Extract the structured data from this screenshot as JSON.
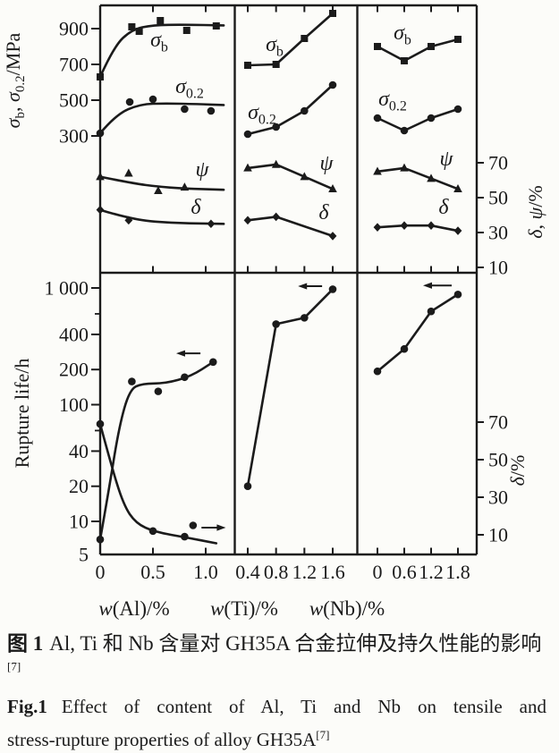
{
  "figure": {
    "caption_zh": {
      "prefix": "图 1",
      "body": "Al, Ti 和 Nb 含量对 GH35A 合金拉伸及持久性能的影响",
      "sup": "[7]"
    },
    "caption_en": {
      "prefix": "Fig.1",
      "line1": "Effect of content of Al, Ti and Nb on tensile and",
      "line2": "stress-rupture properties of alloy GH35A",
      "sup": "[7]"
    }
  },
  "chart_data": {
    "type": "line",
    "description": "Six-panel scanned figure: top row tensile properties (sigma-b, sigma-0.2 in MPa; psi, delta in %) and bottom row stress-rupture life (log scale, h) and rupture elongation delta (%) versus Al, Ti and Nb content of alloy GH35A",
    "panels": [
      {
        "id": "al",
        "xlabel": [
          {
            "t": "w",
            "it": true
          },
          {
            "t": "(Al)/%"
          }
        ],
        "xticks": [
          {
            "v": 0,
            "t": "0"
          },
          {
            "v": 0.5,
            "t": "0.5"
          },
          {
            "v": 1.0,
            "t": "1.0"
          }
        ],
        "tick_marks": [
          0.5,
          1.0
        ],
        "xlim": [
          0,
          1.27
        ]
      },
      {
        "id": "ti",
        "xlabel": [
          {
            "t": "w",
            "it": true
          },
          {
            "t": "(Ti)/%"
          }
        ],
        "xticks": [
          {
            "v": 0.4,
            "t": "0.4"
          },
          {
            "v": 0.8,
            "t": "0.8"
          },
          {
            "v": 1.2,
            "t": "1.2"
          },
          {
            "v": 1.6,
            "t": "1.6"
          }
        ],
        "tick_marks": [
          0.4,
          0.8,
          1.2,
          1.6
        ],
        "xlim": [
          0.21,
          1.95
        ]
      },
      {
        "id": "nb",
        "xlabel": [
          {
            "t": "w",
            "it": true
          },
          {
            "t": "(Nb)/%"
          }
        ],
        "xticks": [
          {
            "v": 0,
            "t": "0"
          },
          {
            "v": 0.6,
            "t": "0.6"
          },
          {
            "v": 1.2,
            "t": "1.2"
          },
          {
            "v": 1.8,
            "t": "1.8"
          }
        ],
        "tick_marks": [
          0,
          0.6,
          1.2,
          1.8
        ],
        "xlim": [
          -0.44,
          2.22
        ]
      }
    ],
    "axes": {
      "mpa": {
        "side": "left",
        "row": "top",
        "scale": "linear",
        "ylim": [
          230,
          1030
        ],
        "label": [
          {
            "t": "σ",
            "it": true
          },
          {
            "t": "b",
            "sub": true
          },
          {
            "t": ", "
          },
          {
            "t": "σ",
            "it": true
          },
          {
            "t": "0.2",
            "sub": true
          },
          {
            "t": "/MPa"
          }
        ],
        "ticks": [
          {
            "v": 300,
            "t": "300"
          },
          {
            "v": 500,
            "t": "500"
          },
          {
            "v": 700,
            "t": "700"
          },
          {
            "v": 900,
            "t": "900"
          }
        ]
      },
      "pct_top": {
        "side": "right",
        "row": "top",
        "scale": "linear",
        "ylim": [
          7,
          80
        ],
        "label": [
          {
            "t": "δ",
            "it": true
          },
          {
            "t": ", "
          },
          {
            "t": "ψ",
            "it": true
          },
          {
            "t": "/%"
          }
        ],
        "ticks": [
          {
            "v": 10,
            "t": "10"
          },
          {
            "v": 30,
            "t": "30"
          },
          {
            "v": 50,
            "t": "50"
          },
          {
            "v": 70,
            "t": "70"
          }
        ]
      },
      "life": {
        "side": "left",
        "row": "bottom",
        "scale": "log",
        "ylim": [
          5,
          1350
        ],
        "label": [
          {
            "t": "Rupture life/h"
          }
        ],
        "ticks": [
          {
            "v": 5,
            "t": "5",
            "no_mark": true
          },
          {
            "v": 10,
            "t": "10"
          },
          {
            "v": 20,
            "t": "20"
          },
          {
            "v": 40,
            "t": "40"
          },
          {
            "v": 100,
            "t": "100"
          },
          {
            "v": 200,
            "t": "200"
          },
          {
            "v": 400,
            "t": "400"
          },
          {
            "v": 1000,
            "t": "1 000"
          }
        ],
        "minor": [
          60,
          600
        ]
      },
      "pct_bot": {
        "side": "right",
        "row": "bottom",
        "scale": "linear",
        "ylim": [
          3,
          73
        ],
        "label": [
          {
            "t": "δ",
            "it": true
          },
          {
            "t": "/%"
          }
        ],
        "ticks": [
          {
            "v": 10,
            "t": "10"
          },
          {
            "v": 30,
            "t": "30"
          },
          {
            "v": 50,
            "t": "50"
          },
          {
            "v": 70,
            "t": "70"
          }
        ]
      }
    },
    "series": [
      {
        "id": "al-sigma-b",
        "row": "top",
        "panel": "al",
        "axis": "mpa",
        "marker": "square",
        "smooth": true,
        "label": [
          {
            "t": "σ",
            "it": true
          },
          {
            "t": "b",
            "sub": true
          }
        ],
        "points": [
          [
            0,
            630
          ],
          [
            0.3,
            910
          ],
          [
            0.37,
            885
          ],
          [
            0.57,
            945
          ],
          [
            0.82,
            890
          ],
          [
            1.1,
            915
          ]
        ],
        "path": [
          [
            0,
            630
          ],
          [
            0.13,
            800
          ],
          [
            0.3,
            895
          ],
          [
            0.5,
            920
          ],
          [
            0.8,
            922
          ],
          [
            1.17,
            918
          ]
        ]
      },
      {
        "id": "al-sigma-02",
        "row": "top",
        "panel": "al",
        "axis": "mpa",
        "marker": "circle",
        "smooth": true,
        "label": [
          {
            "t": "σ",
            "it": true
          },
          {
            "t": "0.2",
            "sub": true
          }
        ],
        "points": [
          [
            0,
            315
          ],
          [
            0.28,
            490
          ],
          [
            0.5,
            505
          ],
          [
            0.8,
            450
          ],
          [
            1.05,
            440
          ]
        ],
        "path": [
          [
            0,
            315
          ],
          [
            0.15,
            420
          ],
          [
            0.38,
            478
          ],
          [
            0.62,
            482
          ],
          [
            0.92,
            478
          ],
          [
            1.17,
            473
          ]
        ]
      },
      {
        "id": "al-psi",
        "row": "top",
        "panel": "al",
        "axis": "pct_top",
        "marker": "triangle",
        "smooth": true,
        "label": [
          {
            "t": "ψ",
            "it": true
          }
        ],
        "points": [
          [
            0,
            62
          ],
          [
            0.27,
            64
          ],
          [
            0.55,
            54
          ],
          [
            0.8,
            56
          ]
        ],
        "path": [
          [
            0,
            62
          ],
          [
            0.28,
            58.5
          ],
          [
            0.58,
            56
          ],
          [
            0.9,
            55
          ],
          [
            1.17,
            54.5
          ]
        ]
      },
      {
        "id": "al-delta",
        "row": "top",
        "panel": "al",
        "axis": "pct_top",
        "marker": "diamond",
        "smooth": true,
        "label": [
          {
            "t": "δ",
            "it": true
          }
        ],
        "points": [
          [
            0,
            43
          ],
          [
            0.27,
            37
          ],
          [
            1.05,
            35
          ]
        ],
        "path": [
          [
            0,
            43
          ],
          [
            0.3,
            37.5
          ],
          [
            0.65,
            35.5
          ],
          [
            1.17,
            35
          ]
        ]
      },
      {
        "id": "ti-sigma-b",
        "row": "top",
        "panel": "ti",
        "axis": "mpa",
        "marker": "square",
        "label": [
          {
            "t": "σ",
            "it": true
          },
          {
            "t": "b",
            "sub": true
          }
        ],
        "points": [
          [
            0.4,
            695
          ],
          [
            0.8,
            700
          ],
          [
            1.2,
            845
          ],
          [
            1.6,
            985
          ]
        ]
      },
      {
        "id": "ti-sigma-02",
        "row": "top",
        "panel": "ti",
        "axis": "mpa",
        "marker": "circle",
        "label": [
          {
            "t": "σ",
            "it": true
          },
          {
            "t": "0.2",
            "sub": true
          }
        ],
        "points": [
          [
            0.4,
            310
          ],
          [
            0.8,
            350
          ],
          [
            1.2,
            440
          ],
          [
            1.6,
            585
          ]
        ]
      },
      {
        "id": "ti-psi",
        "row": "top",
        "panel": "ti",
        "axis": "pct_top",
        "marker": "triangle",
        "label": [
          {
            "t": "ψ",
            "it": true
          }
        ],
        "points": [
          [
            0.4,
            67
          ],
          [
            0.8,
            69
          ],
          [
            1.2,
            62
          ],
          [
            1.6,
            55
          ]
        ]
      },
      {
        "id": "ti-delta",
        "row": "top",
        "panel": "ti",
        "axis": "pct_top",
        "marker": "diamond",
        "label": [
          {
            "t": "δ",
            "it": true
          }
        ],
        "points": [
          [
            0.4,
            37
          ],
          [
            0.8,
            39
          ],
          [
            1.6,
            28
          ]
        ]
      },
      {
        "id": "nb-sigma-b",
        "row": "top",
        "panel": "nb",
        "axis": "mpa",
        "marker": "square",
        "label": [
          {
            "t": "σ",
            "it": true
          },
          {
            "t": "b",
            "sub": true
          }
        ],
        "points": [
          [
            0,
            800
          ],
          [
            0.6,
            720
          ],
          [
            1.2,
            800
          ],
          [
            1.8,
            840
          ]
        ]
      },
      {
        "id": "nb-sigma-02",
        "row": "top",
        "panel": "nb",
        "axis": "mpa",
        "marker": "circle",
        "label": [
          {
            "t": "σ",
            "it": true
          },
          {
            "t": "0.2",
            "sub": true
          }
        ],
        "points": [
          [
            0,
            400
          ],
          [
            0.6,
            330
          ],
          [
            1.2,
            400
          ],
          [
            1.8,
            450
          ]
        ]
      },
      {
        "id": "nb-psi",
        "row": "top",
        "panel": "nb",
        "axis": "pct_top",
        "marker": "triangle",
        "label": [
          {
            "t": "ψ",
            "it": true
          }
        ],
        "points": [
          [
            0,
            65
          ],
          [
            0.6,
            67
          ],
          [
            1.2,
            61
          ],
          [
            1.8,
            55
          ]
        ]
      },
      {
        "id": "nb-delta",
        "row": "top",
        "panel": "nb",
        "axis": "pct_top",
        "marker": "diamond",
        "label": [
          {
            "t": "δ",
            "it": true
          }
        ],
        "points": [
          [
            0,
            33
          ],
          [
            0.6,
            34
          ],
          [
            1.2,
            34
          ],
          [
            1.8,
            31
          ]
        ]
      },
      {
        "id": "al-rupture-life",
        "row": "bottom",
        "panel": "al",
        "axis": "life",
        "marker": "circle",
        "smooth": true,
        "points": [
          [
            0,
            7
          ],
          [
            0.3,
            158
          ],
          [
            0.55,
            130
          ],
          [
            0.8,
            172
          ],
          [
            1.07,
            232
          ]
        ],
        "path": [
          [
            0,
            7
          ],
          [
            0.08,
            18
          ],
          [
            0.18,
            65
          ],
          [
            0.28,
            135
          ],
          [
            0.4,
            152
          ],
          [
            0.62,
            152
          ],
          [
            0.86,
            175
          ],
          [
            1.07,
            232
          ]
        ]
      },
      {
        "id": "al-delta-rupture",
        "row": "bottom",
        "panel": "al",
        "axis": "pct_bot",
        "marker": "circle",
        "smooth": true,
        "points": [
          [
            0,
            69
          ],
          [
            0.5,
            12
          ],
          [
            0.8,
            9
          ],
          [
            0.88,
            15
          ]
        ],
        "path": [
          [
            0,
            69
          ],
          [
            0.1,
            48
          ],
          [
            0.22,
            26
          ],
          [
            0.34,
            16
          ],
          [
            0.52,
            11.5
          ],
          [
            0.82,
            8.5
          ],
          [
            1.1,
            5.5
          ]
        ]
      },
      {
        "id": "ti-rupture-life",
        "row": "bottom",
        "panel": "ti",
        "axis": "life",
        "marker": "circle",
        "points": [
          [
            0.4,
            20
          ],
          [
            0.8,
            490
          ],
          [
            1.2,
            555
          ],
          [
            1.6,
            975
          ]
        ]
      },
      {
        "id": "nb-rupture-life",
        "row": "bottom",
        "panel": "nb",
        "axis": "life",
        "marker": "circle",
        "points": [
          [
            0,
            193
          ],
          [
            0.6,
            300
          ],
          [
            1.2,
            630
          ],
          [
            1.8,
            880
          ]
        ]
      }
    ],
    "arrows": [
      {
        "panel": "al",
        "axis": "life",
        "v": 275,
        "x_tail": 0.95,
        "x_head": 0.72,
        "meaning": "read left axis"
      },
      {
        "panel": "al",
        "axis": "pct_bot",
        "v": 13.8,
        "x_tail": 0.96,
        "x_head": 1.19,
        "meaning": "read right axis"
      },
      {
        "panel": "ti",
        "axis": "life",
        "v": 1035,
        "x_tail": 1.45,
        "x_head": 1.11,
        "meaning": "read left axis"
      },
      {
        "panel": "nb",
        "axis": "life",
        "v": 1050,
        "x_tail": 1.66,
        "x_head": 1.02,
        "meaning": "read left axis"
      }
    ]
  }
}
